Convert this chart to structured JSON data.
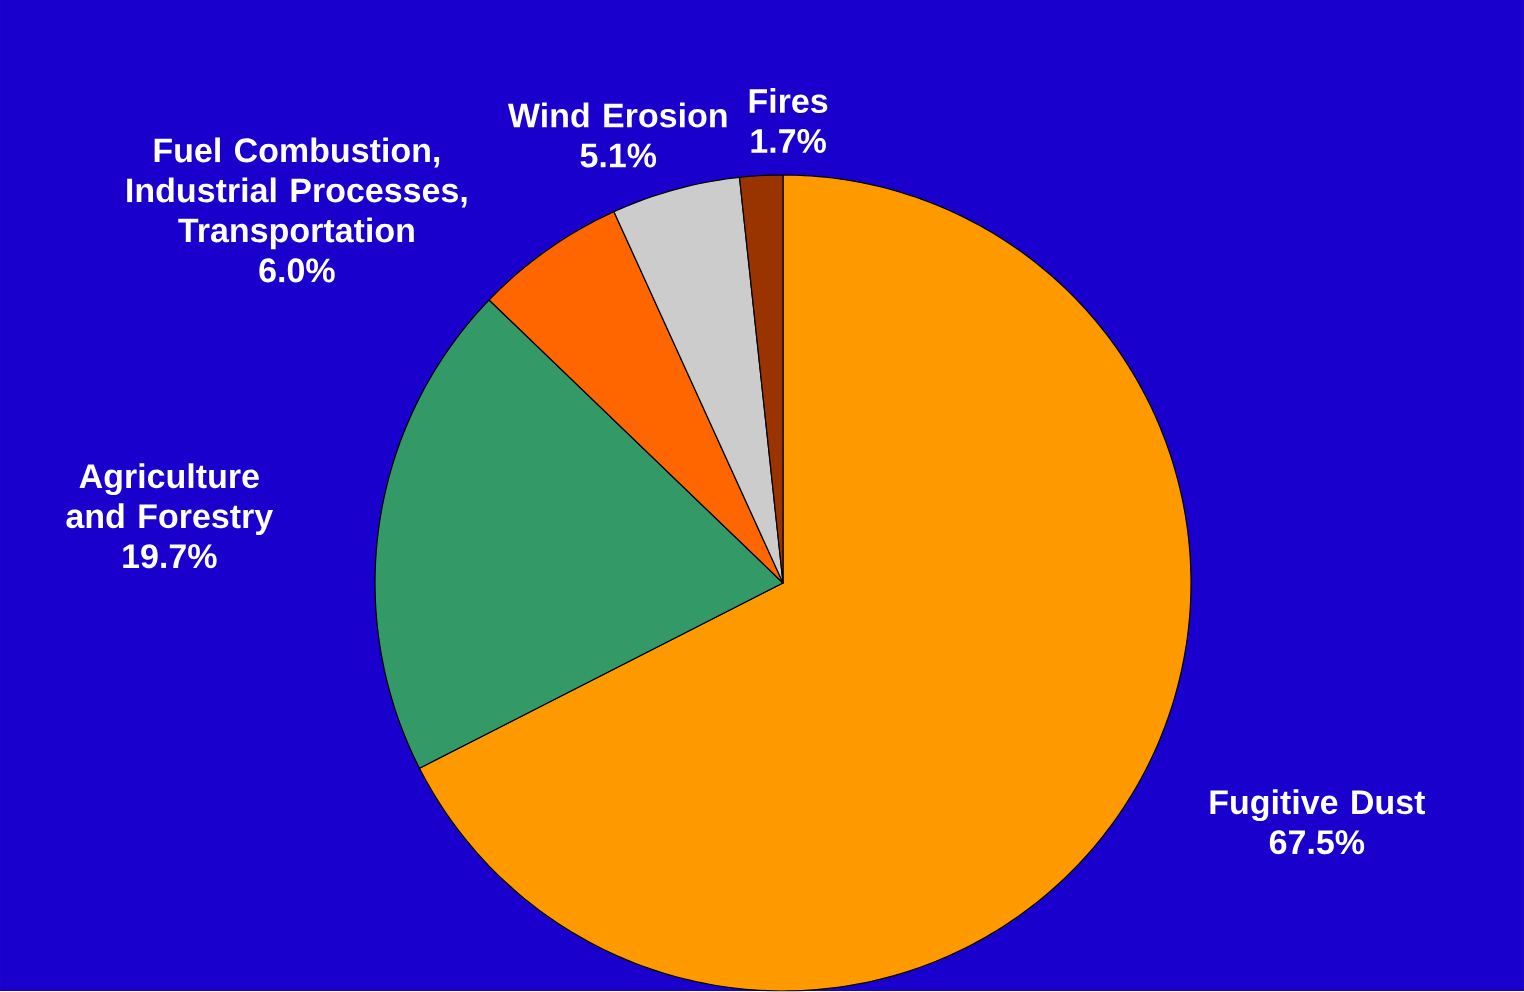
{
  "chart_data": {
    "type": "pie",
    "categories": [
      "Fugitive Dust",
      "Agriculture and Forestry",
      "Fuel Combustion, Industrial Processes, Transportation",
      "Wind Erosion",
      "Fires"
    ],
    "values": [
      67.5,
      19.7,
      6.0,
      5.1,
      1.7
    ],
    "colors": [
      "#ff9900",
      "#339966",
      "#ff6600",
      "#cccccc",
      "#993300"
    ],
    "value_labels": [
      "67.5%",
      "19.7%",
      "6.0%",
      "5.1%",
      "1.7%"
    ]
  }
}
